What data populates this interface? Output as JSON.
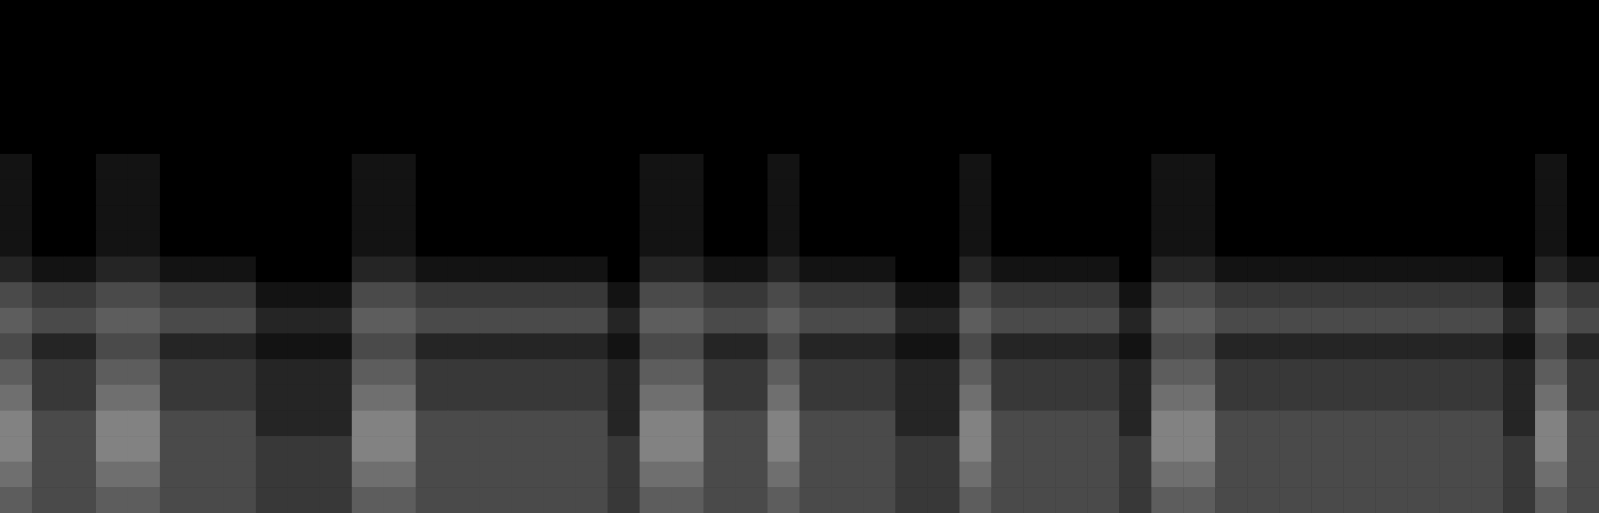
{
  "chart_data": {
    "type": "heatmap",
    "tick_labels": false,
    "zlim": [
      0,
      10
    ],
    "cells": [
      [
        0,
        0,
        0,
        0,
        0,
        0,
        0,
        0,
        0,
        0,
        0,
        0,
        0,
        0,
        0,
        0,
        0,
        0,
        0,
        0,
        0,
        0,
        0,
        0,
        0,
        0,
        0,
        0,
        0,
        0,
        0,
        0,
        0,
        0,
        0,
        0,
        0,
        0,
        0,
        0,
        0,
        0,
        0,
        0,
        0,
        0,
        0,
        0,
        0,
        0
      ],
      [
        0,
        0,
        0,
        0,
        0,
        0,
        0,
        0,
        0,
        0,
        0,
        0,
        0,
        0,
        0,
        0,
        0,
        0,
        0,
        0,
        0,
        0,
        0,
        0,
        0,
        0,
        0,
        0,
        0,
        0,
        0,
        0,
        0,
        0,
        0,
        0,
        0,
        0,
        0,
        0,
        0,
        0,
        0,
        0,
        0,
        0,
        0,
        0,
        0,
        0
      ],
      [
        0,
        0,
        0,
        0,
        0,
        0,
        0,
        0,
        0,
        0,
        0,
        0,
        0,
        0,
        0,
        0,
        0,
        0,
        0,
        0,
        0,
        0,
        0,
        0,
        0,
        0,
        0,
        0,
        0,
        0,
        0,
        0,
        0,
        0,
        0,
        0,
        0,
        0,
        0,
        0,
        0,
        0,
        0,
        0,
        0,
        0,
        0,
        0,
        0,
        0
      ],
      [
        0,
        0,
        0,
        0,
        0,
        0,
        0,
        0,
        0,
        0,
        0,
        0,
        0,
        0,
        0,
        0,
        0,
        0,
        0,
        0,
        0,
        0,
        0,
        0,
        0,
        0,
        0,
        0,
        0,
        0,
        0,
        0,
        0,
        0,
        0,
        0,
        0,
        0,
        0,
        0,
        0,
        0,
        0,
        0,
        0,
        0,
        0,
        0,
        0,
        0
      ],
      [
        0,
        0,
        0,
        0,
        0,
        0,
        0,
        0,
        0,
        0,
        0,
        0,
        0,
        0,
        0,
        0,
        0,
        0,
        0,
        0,
        0,
        0,
        0,
        0,
        0,
        0,
        0,
        0,
        0,
        0,
        0,
        0,
        0,
        0,
        0,
        0,
        0,
        0,
        0,
        0,
        0,
        0,
        0,
        0,
        0,
        0,
        0,
        0,
        0,
        0
      ],
      [
        0,
        0,
        0,
        0,
        0,
        0,
        0,
        0,
        0,
        0,
        0,
        0,
        0,
        0,
        0,
        0,
        0,
        0,
        0,
        0,
        0,
        0,
        0,
        0,
        0,
        0,
        0,
        0,
        0,
        0,
        0,
        0,
        0,
        0,
        0,
        0,
        0,
        0,
        0,
        0,
        0,
        0,
        0,
        0,
        0,
        0,
        0,
        0,
        0,
        0
      ],
      [
        1,
        0,
        0,
        1,
        1,
        0,
        0,
        0,
        0,
        0,
        0,
        1,
        1,
        0,
        0,
        0,
        0,
        0,
        0,
        0,
        1,
        1,
        0,
        0,
        1,
        0,
        0,
        0,
        0,
        0,
        1,
        0,
        0,
        0,
        0,
        0,
        1,
        1,
        0,
        0,
        0,
        0,
        0,
        0,
        0,
        0,
        0,
        0,
        1,
        0
      ],
      [
        1,
        0,
        0,
        1,
        1,
        0,
        0,
        0,
        0,
        0,
        0,
        1,
        1,
        0,
        0,
        0,
        0,
        0,
        0,
        0,
        1,
        1,
        0,
        0,
        1,
        0,
        0,
        0,
        0,
        0,
        1,
        0,
        0,
        0,
        0,
        0,
        1,
        1,
        0,
        0,
        0,
        0,
        0,
        0,
        0,
        0,
        0,
        0,
        1,
        0
      ],
      [
        1,
        0,
        0,
        1,
        1,
        0,
        0,
        0,
        0,
        0,
        0,
        1,
        1,
        0,
        0,
        0,
        0,
        0,
        0,
        0,
        1,
        1,
        0,
        0,
        1,
        0,
        0,
        0,
        0,
        0,
        1,
        0,
        0,
        0,
        0,
        0,
        1,
        1,
        0,
        0,
        0,
        0,
        0,
        0,
        0,
        0,
        0,
        0,
        1,
        0
      ],
      [
        1,
        0,
        0,
        1,
        1,
        0,
        0,
        0,
        0,
        0,
        0,
        1,
        1,
        0,
        0,
        0,
        0,
        0,
        0,
        0,
        1,
        1,
        0,
        0,
        1,
        0,
        0,
        0,
        0,
        0,
        1,
        0,
        0,
        0,
        0,
        0,
        1,
        1,
        0,
        0,
        0,
        0,
        0,
        0,
        0,
        0,
        0,
        0,
        1,
        0
      ],
      [
        2,
        1,
        1,
        2,
        2,
        1,
        1,
        1,
        0,
        0,
        0,
        2,
        2,
        1,
        1,
        1,
        1,
        1,
        1,
        0,
        2,
        2,
        1,
        1,
        2,
        1,
        1,
        1,
        0,
        0,
        2,
        1,
        1,
        1,
        1,
        0,
        2,
        2,
        1,
        1,
        1,
        1,
        1,
        1,
        1,
        1,
        1,
        0,
        2,
        1
      ],
      [
        4,
        3,
        3,
        4,
        4,
        3,
        3,
        3,
        1,
        1,
        1,
        4,
        4,
        3,
        3,
        3,
        3,
        3,
        3,
        1,
        4,
        4,
        3,
        3,
        4,
        3,
        3,
        3,
        1,
        1,
        4,
        3,
        3,
        3,
        3,
        1,
        4,
        4,
        3,
        3,
        3,
        3,
        3,
        3,
        3,
        3,
        3,
        1,
        4,
        3
      ],
      [
        5,
        4,
        4,
        5,
        5,
        4,
        4,
        4,
        2,
        2,
        2,
        5,
        5,
        4,
        4,
        4,
        4,
        4,
        4,
        2,
        5,
        5,
        4,
        4,
        5,
        4,
        4,
        4,
        2,
        2,
        5,
        4,
        4,
        4,
        4,
        2,
        5,
        5,
        4,
        4,
        4,
        4,
        4,
        4,
        4,
        4,
        4,
        2,
        5,
        4
      ],
      [
        4,
        2,
        2,
        4,
        4,
        2,
        2,
        2,
        1,
        1,
        1,
        4,
        4,
        2,
        2,
        2,
        2,
        2,
        2,
        1,
        4,
        4,
        2,
        2,
        4,
        2,
        2,
        2,
        1,
        1,
        4,
        2,
        2,
        2,
        2,
        1,
        4,
        4,
        2,
        2,
        2,
        2,
        2,
        2,
        2,
        2,
        2,
        1,
        4,
        2
      ],
      [
        5,
        3,
        3,
        5,
        5,
        3,
        3,
        3,
        2,
        2,
        2,
        5,
        5,
        3,
        3,
        3,
        3,
        3,
        3,
        2,
        5,
        5,
        3,
        3,
        5,
        3,
        3,
        3,
        2,
        2,
        5,
        3,
        3,
        3,
        3,
        2,
        5,
        5,
        3,
        3,
        3,
        3,
        3,
        3,
        3,
        3,
        3,
        2,
        5,
        3
      ],
      [
        6,
        3,
        3,
        6,
        6,
        3,
        3,
        3,
        2,
        2,
        2,
        6,
        6,
        3,
        3,
        3,
        3,
        3,
        3,
        2,
        6,
        6,
        3,
        3,
        6,
        3,
        3,
        3,
        2,
        2,
        6,
        3,
        3,
        3,
        3,
        2,
        6,
        6,
        3,
        3,
        3,
        3,
        3,
        3,
        3,
        3,
        3,
        2,
        6,
        3
      ],
      [
        7,
        4,
        4,
        7,
        7,
        4,
        4,
        4,
        2,
        2,
        2,
        7,
        7,
        4,
        4,
        4,
        4,
        4,
        4,
        2,
        7,
        7,
        4,
        4,
        7,
        4,
        4,
        4,
        2,
        2,
        7,
        4,
        4,
        4,
        4,
        2,
        7,
        7,
        4,
        4,
        4,
        4,
        4,
        4,
        4,
        4,
        4,
        2,
        7,
        4
      ],
      [
        7,
        4,
        4,
        7,
        7,
        4,
        4,
        4,
        3,
        3,
        3,
        7,
        7,
        4,
        4,
        4,
        4,
        4,
        4,
        3,
        7,
        7,
        4,
        4,
        7,
        4,
        4,
        4,
        3,
        3,
        7,
        4,
        4,
        4,
        4,
        3,
        7,
        7,
        4,
        4,
        4,
        4,
        4,
        4,
        4,
        4,
        4,
        3,
        7,
        4
      ],
      [
        6,
        4,
        4,
        6,
        6,
        4,
        4,
        4,
        3,
        3,
        3,
        6,
        6,
        4,
        4,
        4,
        4,
        4,
        4,
        3,
        6,
        6,
        4,
        4,
        6,
        4,
        4,
        4,
        3,
        3,
        6,
        4,
        4,
        4,
        4,
        3,
        6,
        6,
        4,
        4,
        4,
        4,
        4,
        4,
        4,
        4,
        4,
        3,
        6,
        4
      ],
      [
        5,
        4,
        4,
        5,
        5,
        4,
        4,
        4,
        3,
        3,
        3,
        5,
        5,
        4,
        4,
        4,
        4,
        4,
        4,
        3,
        5,
        5,
        4,
        4,
        5,
        4,
        4,
        4,
        3,
        3,
        5,
        4,
        4,
        4,
        4,
        3,
        5,
        5,
        4,
        4,
        4,
        4,
        4,
        4,
        4,
        4,
        4,
        3,
        5,
        4
      ]
    ]
  }
}
